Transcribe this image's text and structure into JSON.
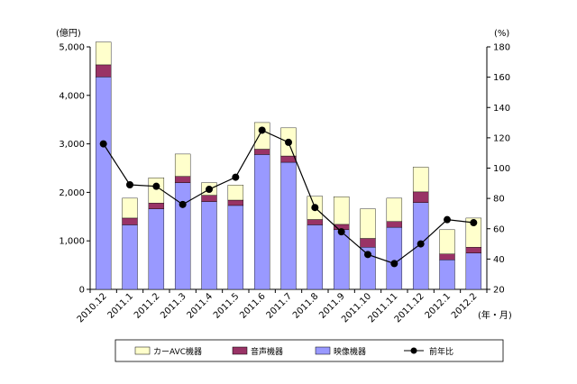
{
  "chart_data": {
    "type": "bar",
    "stacked": true,
    "categories": [
      "2010.12",
      "2011.1",
      "2011.2",
      "2011.3",
      "2011.4",
      "2011.5",
      "2011.6",
      "2011.7",
      "2011.8",
      "2011.9",
      "2011.10",
      "2011.11",
      "2011.12",
      "2012.1",
      "2012.2"
    ],
    "series": [
      {
        "name": "映像機器",
        "color": "#9999ff",
        "values": [
          4380,
          1330,
          1660,
          2200,
          1810,
          1730,
          2780,
          2620,
          1330,
          1230,
          870,
          1280,
          1790,
          610,
          750
        ]
      },
      {
        "name": "音声機器",
        "color": "#993366",
        "values": [
          250,
          140,
          120,
          130,
          130,
          110,
          110,
          130,
          110,
          110,
          180,
          120,
          220,
          120,
          120
        ]
      },
      {
        "name": "カーAVC機器",
        "color": "#ffffcc",
        "values": [
          470,
          410,
          520,
          460,
          260,
          310,
          550,
          580,
          480,
          570,
          610,
          480,
          510,
          500,
          600
        ]
      }
    ],
    "line_series": {
      "name": "前年比",
      "color": "#000000",
      "axis": "right",
      "values": [
        116,
        89,
        88,
        76,
        86,
        94,
        125,
        117,
        74,
        58,
        43,
        37,
        50,
        66,
        64
      ]
    },
    "ylabel_left": "(億円)",
    "ylabel_right": "(%)",
    "xlabel": "(年・月)",
    "ylim_left": [
      0,
      5000
    ],
    "yticks_left": [
      "0",
      "1,000",
      "2,000",
      "3,000",
      "4,000",
      "5,000"
    ],
    "ylim_right": [
      20,
      180
    ],
    "yticks_right": [
      "20",
      "40",
      "60",
      "80",
      "100",
      "120",
      "140",
      "160",
      "180"
    ],
    "grid": false,
    "legend_position": "bottom",
    "legend": [
      "カーAVC機器",
      "音声機器",
      "映像機器",
      "前年比"
    ]
  }
}
